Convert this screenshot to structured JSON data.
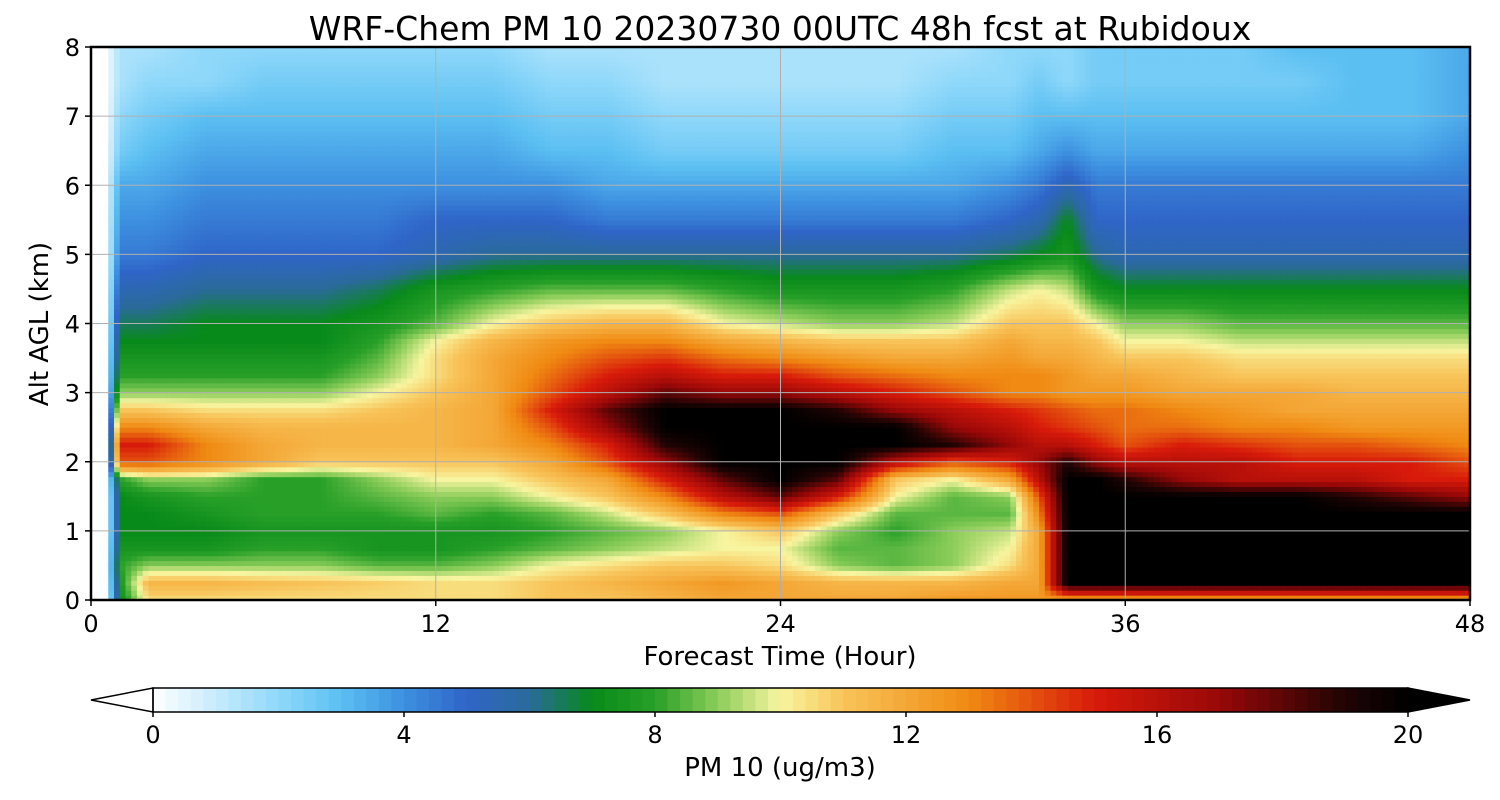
{
  "chart_data": {
    "type": "heatmap",
    "title": "WRF-Chem PM 10  20230730 00UTC 48h fcst at Rubidoux",
    "xlabel": "Forecast Time (Hour)",
    "ylabel": "Alt AGL (km)",
    "xlim": [
      0,
      48
    ],
    "ylim": [
      0,
      8
    ],
    "xticks": [
      0,
      12,
      24,
      36,
      48
    ],
    "xtick_labels": [
      "0",
      "12",
      "24",
      "36",
      "48"
    ],
    "yticks": [
      0,
      1,
      2,
      3,
      4,
      5,
      6,
      7,
      8
    ],
    "ytick_labels": [
      "0",
      "1",
      "2",
      "3",
      "4",
      "5",
      "6",
      "7",
      "8"
    ],
    "grid": true,
    "colorbar": {
      "label": "PM 10  (ug/m3)",
      "range": [
        0,
        20
      ],
      "ticks": [
        0,
        4,
        8,
        12,
        16,
        20
      ],
      "tick_labels": [
        "0",
        "4",
        "8",
        "12",
        "16",
        "20"
      ],
      "extend": "both",
      "stops": [
        {
          "v": 0,
          "c": "#ffffff"
        },
        {
          "v": 2,
          "c": "#8fd8fa"
        },
        {
          "v": 3,
          "c": "#5bbff2"
        },
        {
          "v": 4,
          "c": "#3d90e0"
        },
        {
          "v": 5,
          "c": "#2f65c8"
        },
        {
          "v": 6,
          "c": "#2a6a9a"
        },
        {
          "v": 7,
          "c": "#088a1a"
        },
        {
          "v": 8,
          "c": "#28a028"
        },
        {
          "v": 9,
          "c": "#8ccd5a"
        },
        {
          "v": 10,
          "c": "#f8f5a0"
        },
        {
          "v": 11,
          "c": "#f8c45a"
        },
        {
          "v": 13,
          "c": "#f08a12"
        },
        {
          "v": 15,
          "c": "#d81a0a"
        },
        {
          "v": 17,
          "c": "#980808"
        },
        {
          "v": 19,
          "c": "#200404"
        },
        {
          "v": 20,
          "c": "#000000"
        }
      ]
    },
    "grid_x": [
      0,
      0.5,
      1,
      2,
      4,
      6,
      8,
      10,
      12,
      14,
      16,
      18,
      20,
      22,
      24,
      26,
      28,
      30,
      32,
      33,
      34,
      35,
      36,
      38,
      40,
      42,
      44,
      46,
      48
    ],
    "grid_y": [
      0,
      0.25,
      0.5,
      0.75,
      1,
      1.25,
      1.5,
      1.75,
      2,
      2.25,
      2.5,
      2.75,
      3,
      3.25,
      3.5,
      3.75,
      4,
      4.5,
      5,
      5.5,
      6,
      6.5,
      7,
      7.5,
      8
    ],
    "values": [
      [
        0,
        0,
        7,
        10.5,
        10.5,
        10.5,
        10.5,
        10.5,
        10.5,
        10.5,
        11,
        11,
        11.5,
        12,
        12,
        12,
        12,
        12.5,
        12.5,
        12.5,
        12,
        12,
        12,
        12,
        12,
        12,
        12,
        12,
        12
      ],
      [
        0,
        0,
        7.5,
        11.5,
        11.5,
        11.2,
        11,
        10.8,
        10.5,
        10.5,
        11,
        11.5,
        12,
        12.5,
        12,
        11.5,
        11.5,
        11.5,
        12,
        12,
        20,
        20,
        20,
        20,
        20,
        20,
        20,
        20,
        20
      ],
      [
        0,
        0,
        8,
        9,
        9,
        9,
        9,
        8.5,
        8.5,
        9,
        10,
        10.5,
        11,
        11,
        10.5,
        9,
        8.5,
        9,
        10.5,
        12,
        20,
        20,
        20,
        20,
        20,
        20,
        20,
        20,
        20
      ],
      [
        0,
        0,
        7.5,
        7.5,
        7.5,
        8,
        8,
        7.5,
        7.5,
        8,
        8.5,
        9,
        9.5,
        10,
        10,
        8.5,
        8.5,
        9,
        10,
        12,
        20,
        20,
        20,
        20,
        20,
        20,
        20,
        20,
        20
      ],
      [
        0,
        0,
        7,
        7,
        7,
        7.5,
        7.5,
        7.5,
        7.5,
        7.5,
        8,
        8.5,
        9,
        10,
        11,
        9,
        8,
        9,
        9.5,
        12,
        20,
        20,
        20,
        20,
        20,
        20,
        20,
        20,
        20
      ],
      [
        0,
        0,
        7,
        7,
        7.5,
        8,
        8,
        8,
        8.5,
        8,
        8.5,
        9.5,
        11,
        13,
        14,
        11,
        8.5,
        8.5,
        8.5,
        13,
        20,
        20,
        20,
        20,
        20,
        20,
        20,
        20,
        20
      ],
      [
        0,
        0,
        7,
        7.5,
        8,
        8,
        8,
        8.5,
        9,
        9,
        10,
        11,
        13,
        16,
        18,
        15,
        10,
        8.5,
        9,
        14,
        20,
        20,
        20,
        20,
        20,
        20,
        19,
        18,
        17
      ],
      [
        0,
        0,
        8,
        9,
        9,
        8,
        8,
        9,
        10,
        10,
        11,
        12,
        15,
        18,
        20,
        18,
        11,
        10,
        12,
        16,
        20,
        20,
        19,
        17,
        16,
        16,
        16,
        15,
        15
      ],
      [
        0,
        0,
        14,
        14,
        13,
        12,
        11,
        11,
        11,
        11,
        12,
        14,
        17,
        20,
        20,
        20,
        16,
        14,
        15,
        17,
        19,
        17,
        16,
        16,
        16,
        15,
        15,
        15,
        14
      ],
      [
        0,
        0,
        15,
        15,
        13,
        12,
        11.5,
        11.5,
        11.5,
        12,
        13,
        15,
        19,
        20,
        20,
        20,
        20,
        19,
        17,
        16,
        16,
        15,
        14,
        15,
        14.5,
        14,
        14,
        13.5,
        13
      ],
      [
        0,
        0,
        13,
        13,
        12,
        11.5,
        11.5,
        11.5,
        11.5,
        12,
        14,
        17,
        20,
        20,
        20,
        20,
        20,
        17,
        16,
        15,
        14.5,
        14,
        13.5,
        13.5,
        13,
        13,
        12.5,
        12.5,
        12.5
      ],
      [
        0,
        0,
        11,
        11,
        10.5,
        10.5,
        10.5,
        11,
        11.5,
        12,
        15,
        18,
        20,
        20,
        20,
        19,
        17,
        16,
        15,
        14.5,
        14,
        13.5,
        13.5,
        13,
        12.5,
        12,
        12,
        12,
        12
      ],
      [
        0,
        0,
        9,
        9,
        9,
        9,
        9,
        10,
        11,
        12,
        14,
        16,
        18,
        17,
        17,
        16,
        15,
        14,
        13,
        13,
        12.5,
        12.5,
        12.5,
        12,
        12,
        12,
        11.5,
        11.5,
        11.5
      ],
      [
        0,
        0,
        8,
        8,
        8,
        8,
        8,
        9,
        10.5,
        12,
        13.5,
        15,
        16,
        15,
        15,
        14,
        13.5,
        13,
        13,
        13,
        12.5,
        12,
        12,
        11.5,
        11,
        11,
        11,
        11,
        11
      ],
      [
        0,
        0,
        7.5,
        7.5,
        7.5,
        7.5,
        7.5,
        8.5,
        10.5,
        12,
        13,
        14,
        14.5,
        13.5,
        13,
        12.5,
        12,
        12,
        12.5,
        12,
        12,
        11.5,
        11,
        11,
        10.5,
        10.5,
        10.5,
        10.5,
        10.5
      ],
      [
        0,
        0,
        7,
        7,
        7,
        7,
        7,
        8,
        10,
        11.5,
        12.5,
        13,
        13,
        12,
        11.5,
        11,
        11,
        11,
        12,
        11.5,
        11.5,
        11,
        10,
        10,
        9.5,
        9.5,
        9.5,
        9.5,
        9.5
      ],
      [
        0,
        0,
        6.5,
        6.5,
        7,
        7,
        7,
        7.5,
        8.5,
        10,
        11,
        11.5,
        11.5,
        10,
        9.5,
        9,
        9,
        9.5,
        11,
        11,
        11,
        10,
        9,
        9,
        8.5,
        8.5,
        8.5,
        8.5,
        8.5
      ],
      [
        0,
        0,
        5.5,
        5.5,
        6,
        6,
        6,
        6.5,
        7.5,
        8,
        8.5,
        8.5,
        8.5,
        8,
        7.5,
        7.5,
        7.5,
        8,
        9.5,
        10,
        9.5,
        7.5,
        7,
        7,
        7,
        7,
        7,
        7,
        7
      ],
      [
        0,
        0,
        4.5,
        4.5,
        5,
        5,
        5,
        5,
        5.5,
        6,
        6,
        6,
        6,
        6,
        6,
        6,
        6,
        6,
        6.5,
        7,
        7.5,
        6,
        5.5,
        5.5,
        5.5,
        5.5,
        5.5,
        5.5,
        5.5
      ],
      [
        0,
        0,
        4,
        4,
        4.5,
        4.5,
        4.5,
        4.5,
        5,
        5,
        5,
        4.5,
        4.5,
        4.5,
        4.5,
        4.5,
        4.5,
        4.5,
        5,
        5.5,
        7,
        5,
        5,
        5,
        5,
        5,
        5,
        5,
        5
      ],
      [
        0,
        0,
        3.5,
        3.5,
        4,
        4,
        4,
        4,
        4,
        4,
        4,
        3.5,
        3.5,
        3.5,
        3.5,
        3.5,
        3.5,
        3.5,
        4,
        4.5,
        5.5,
        4.5,
        4.5,
        4.5,
        4.5,
        4.5,
        4.5,
        4.5,
        4.5
      ],
      [
        0,
        0,
        2.5,
        3,
        3.5,
        3.5,
        3.5,
        3.5,
        3.5,
        3.5,
        3,
        3,
        2.5,
        2.5,
        2.5,
        2.5,
        2.5,
        3,
        3,
        3.5,
        4,
        3.5,
        3.5,
        3.5,
        3.5,
        3.5,
        3.5,
        3.5,
        4
      ],
      [
        0,
        0,
        2,
        2.5,
        3,
        3,
        3,
        3,
        3,
        3,
        2.5,
        2.5,
        2,
        2,
        2,
        2,
        2,
        2.5,
        2.5,
        3,
        3,
        3,
        3,
        3,
        3,
        3,
        3,
        3,
        3.5
      ],
      [
        0,
        0,
        1.5,
        2,
        2,
        2.5,
        2.5,
        2.5,
        2.5,
        2.5,
        2,
        2,
        1.5,
        1.5,
        1.5,
        1.5,
        1.5,
        2,
        2,
        2.5,
        2,
        2.5,
        2.5,
        2.5,
        2.5,
        2.5,
        3,
        3,
        3.5
      ],
      [
        0,
        0,
        1.5,
        1.5,
        2,
        2,
        2,
        2,
        2,
        2,
        1.5,
        1.5,
        1.5,
        1.5,
        1.5,
        1.5,
        1.5,
        1.5,
        2,
        2,
        2,
        2.5,
        2.5,
        2.5,
        2.5,
        3,
        3,
        3,
        3.5
      ]
    ]
  }
}
